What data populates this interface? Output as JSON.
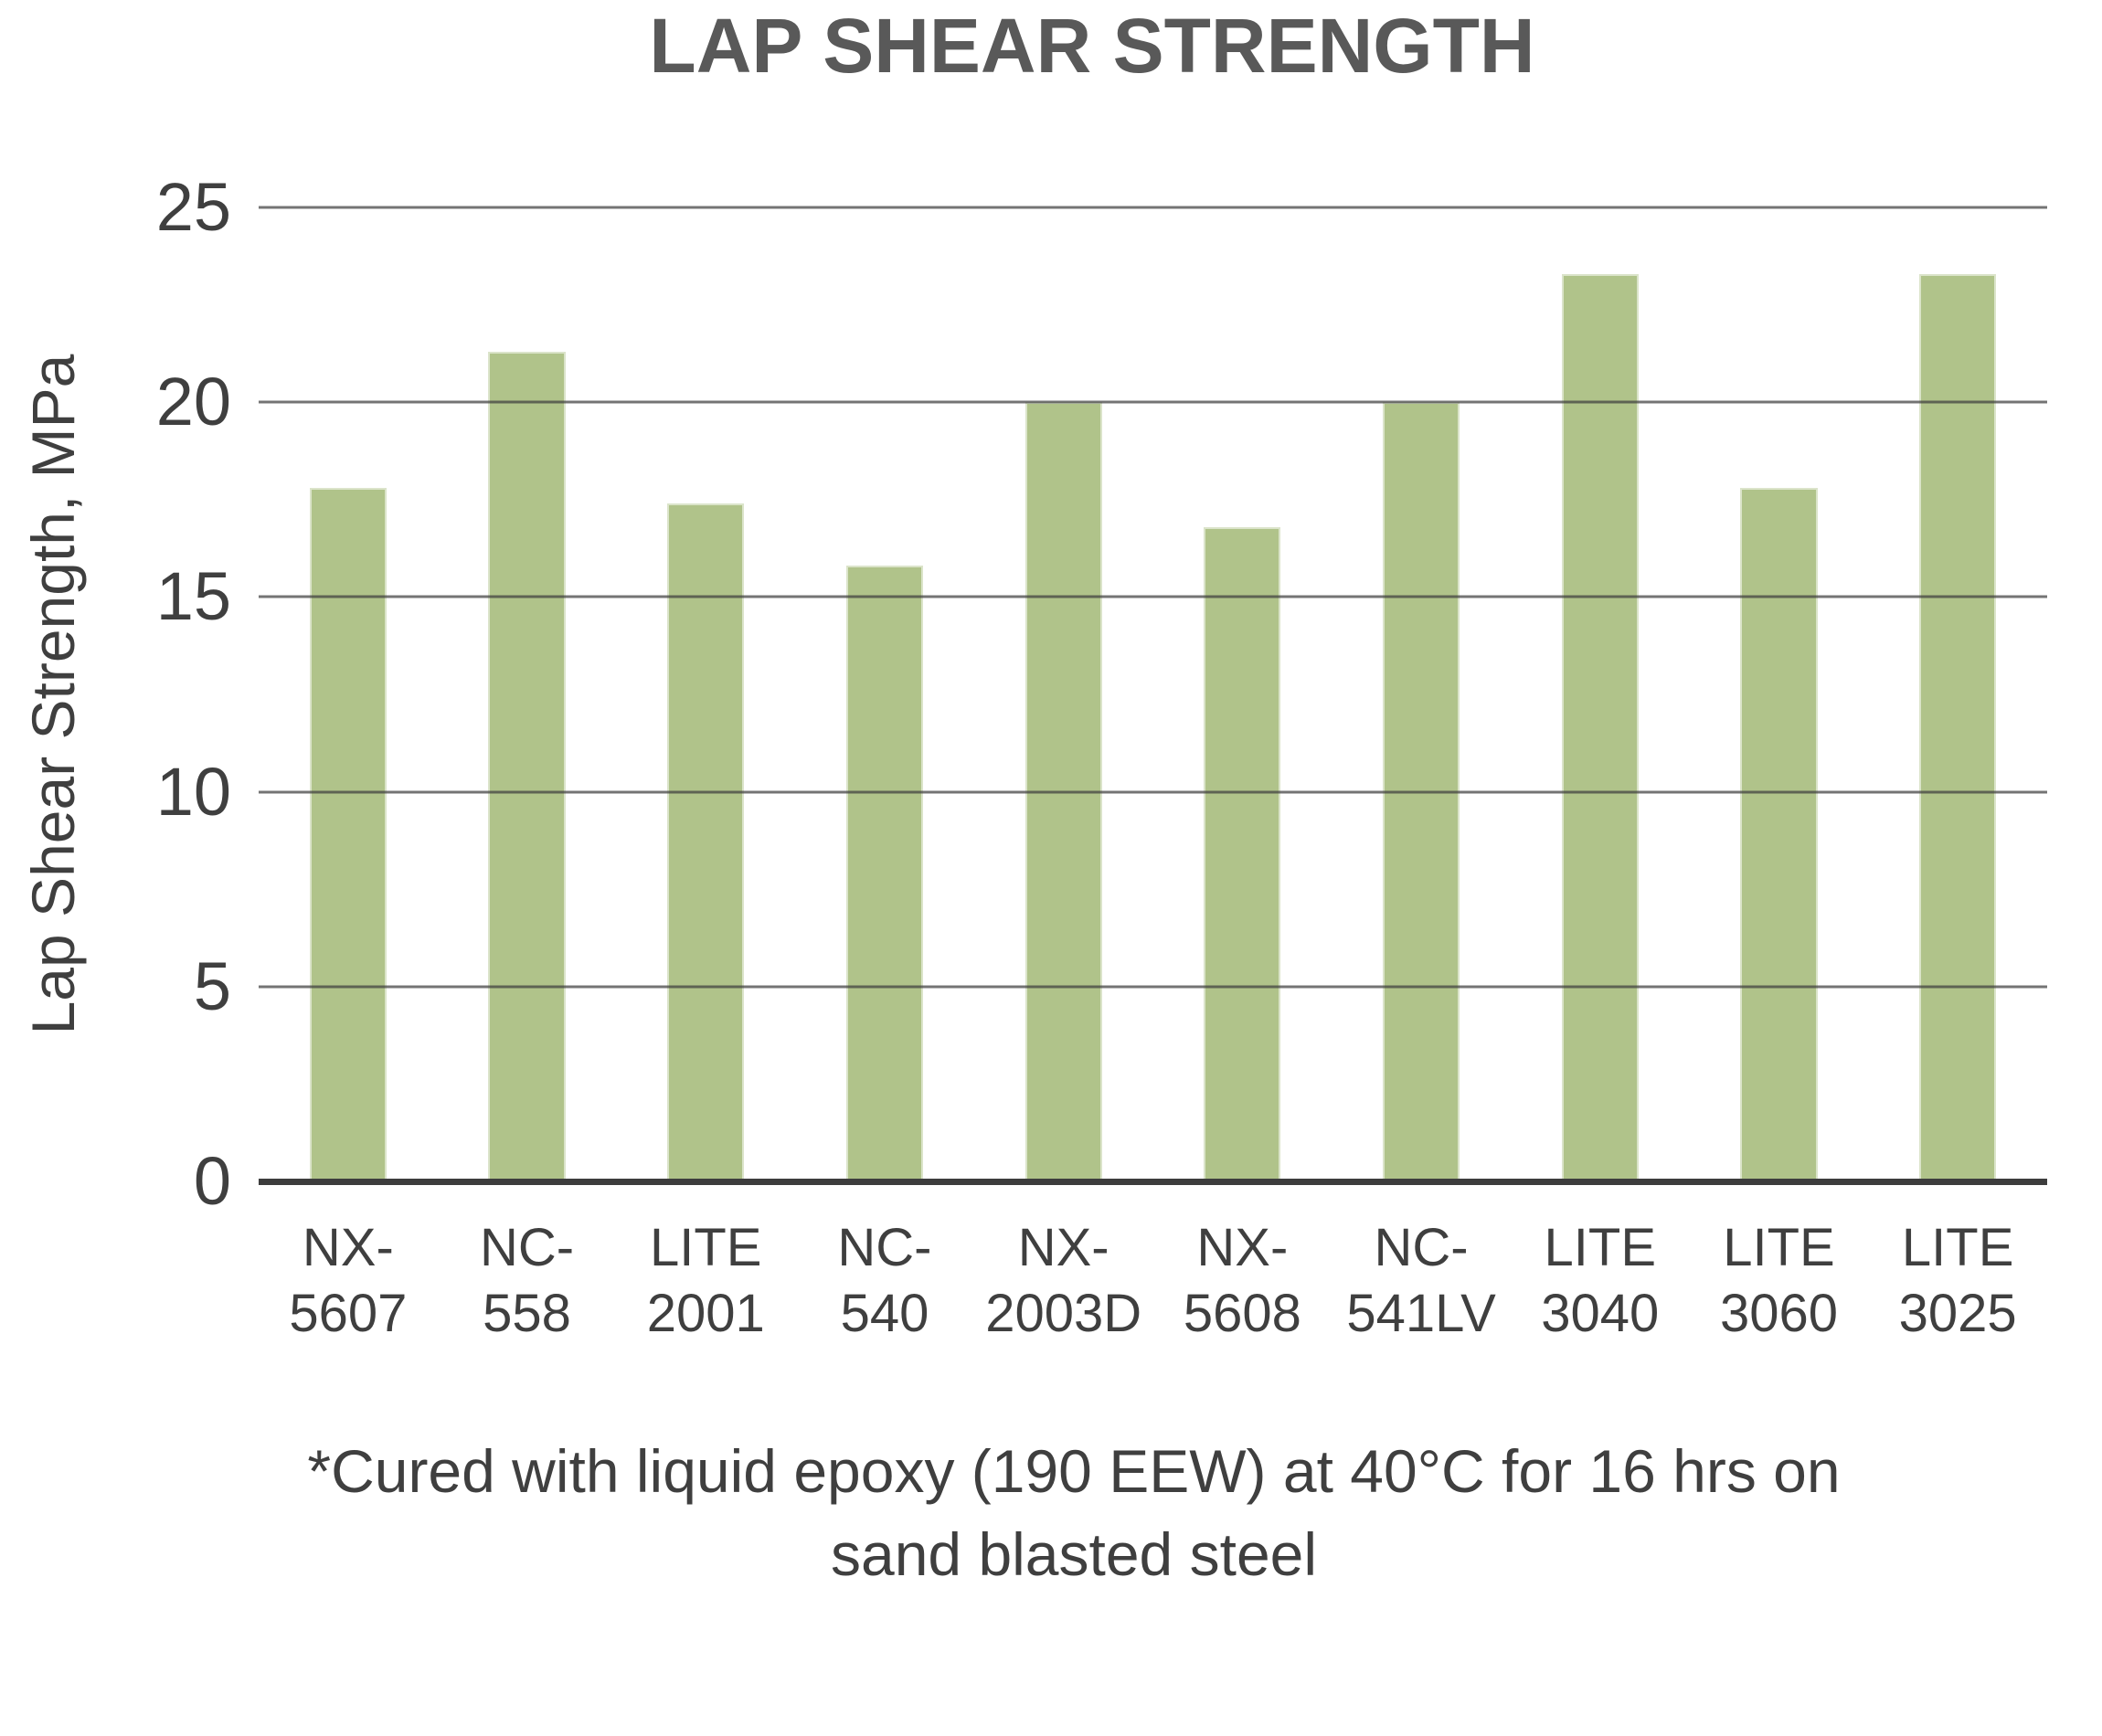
{
  "chart_data": {
    "type": "bar",
    "title": "LAP SHEAR STRENGTH",
    "ylabel": "Lap Shear Strength, MPa",
    "xlabel": "",
    "categories": [
      "NX-5607",
      "NC-558",
      "LITE 2001",
      "NC-540",
      "NX-2003D",
      "NX-5608",
      "NC-541LV",
      "LITE 3040",
      "LITE 3060",
      "LITE 3025"
    ],
    "category_display": [
      "NX-\n5607",
      "NC-\n558",
      "LITE\n2001",
      "NC-\n540",
      "NX-\n2003D",
      "NX-\n5608",
      "NC-\n541LV",
      "LITE\n3040",
      "LITE\n3060",
      "LITE\n3025"
    ],
    "values": [
      17.8,
      21.3,
      17.4,
      15.8,
      20.0,
      16.8,
      20.0,
      23.3,
      17.8,
      23.3
    ],
    "ylim": [
      0,
      25
    ],
    "yticks": [
      0,
      5,
      10,
      15,
      20,
      25
    ],
    "grid": true,
    "legend": false,
    "gridlines_over_bars": true,
    "bar_color": "#b0c38a",
    "gridline_color": "rgba(62,62,62,0.72)",
    "axis_color": "#3d3d3d",
    "title_color": "#595959",
    "label_color": "#3f3f3f",
    "footnote": "*Cured with liquid epoxy (190 EEW) at 40°C for 16 hrs on\nsand blasted steel"
  }
}
